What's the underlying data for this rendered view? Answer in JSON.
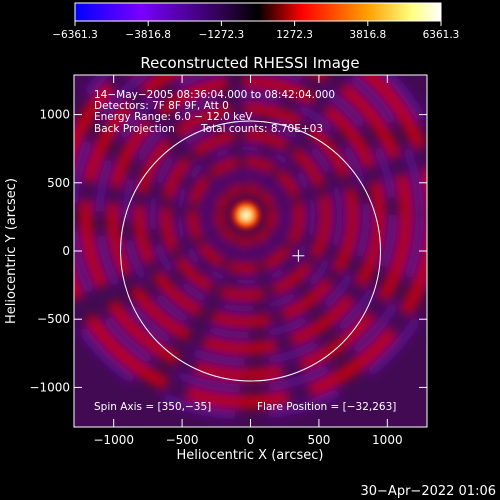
{
  "chart_data": {
    "type": "heatmap",
    "title": "Reconstructed RHESSI Image",
    "xlabel": "Heliocentric X (arcsec)",
    "ylabel": "Heliocentric Y (arcsec)",
    "xlim": [
      -1290,
      1290
    ],
    "ylim": [
      -1290,
      1290
    ],
    "x_ticks": [
      -1000,
      -500,
      0,
      500,
      1000
    ],
    "y_ticks": [
      -1000,
      -500,
      0,
      500,
      1000
    ],
    "x_tick_labels": [
      "−1000",
      "−500",
      "0",
      "500",
      "1000"
    ],
    "y_tick_labels": [
      "−1000",
      "−500",
      "0",
      "500",
      "1000"
    ],
    "colorbar": {
      "range": [
        -6361.3,
        6361.3
      ],
      "ticks": [
        -6361.3,
        -3816.8,
        -1272.3,
        1272.3,
        3816.8,
        6361.3
      ],
      "tick_labels": [
        "−6361.3",
        "−3816.8",
        "−1272.3",
        "1272.3",
        "3816.8",
        "6361.3"
      ],
      "colors": [
        "#0000ff",
        "#7a00ff",
        "#300050",
        "#000000",
        "#ff0000",
        "#ffa000",
        "#ffff80",
        "#ffffff"
      ]
    },
    "annotations": {
      "time_range": "14−May−2005 08:36:04.000 to 08:42:04.000",
      "detectors": "Detectors: 7F 8F 9F, Att 0",
      "energy": "Energy Range: 6.0 − 12.0 keV",
      "method": "Back Projection",
      "counts": "Total counts: 8.70E+03",
      "spin_axis": "Spin Axis = [350,−35]",
      "flare_position": "Flare Position = [−32,263]"
    },
    "source_peak": [
      -32,
      263
    ],
    "spin_axis_marker": [
      350,
      -35
    ],
    "solar_limb_radius": 950,
    "ring_spacing": 195
  },
  "footer": {
    "timestamp": "30−Apr−2022 01:06"
  }
}
